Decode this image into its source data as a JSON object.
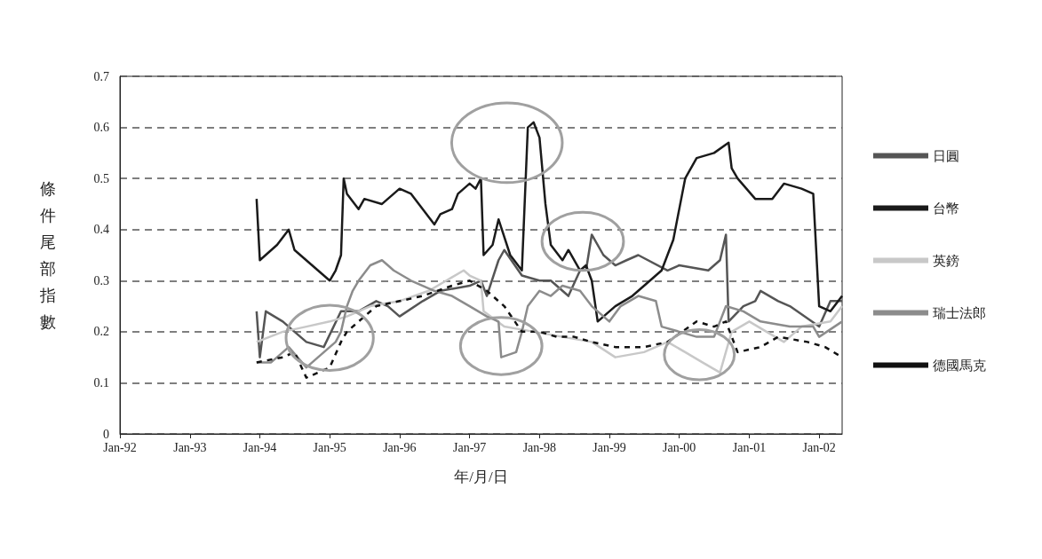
{
  "chart_data": {
    "type": "line",
    "xlabel": "年/月/日",
    "ylabel": "條件尾部指數",
    "xlim": [
      "1992-01",
      "2002-05"
    ],
    "xticks": [
      {
        "value": "1992-01",
        "label": "Jan-92"
      },
      {
        "value": "1993-01",
        "label": "Jan-93"
      },
      {
        "value": "1994-01",
        "label": "Jan-94"
      },
      {
        "value": "1995-01",
        "label": "Jan-95"
      },
      {
        "value": "1996-01",
        "label": "Jan-96"
      },
      {
        "value": "1997-01",
        "label": "Jan-97"
      },
      {
        "value": "1998-01",
        "label": "Jan-98"
      },
      {
        "value": "1999-01",
        "label": "Jan-99"
      },
      {
        "value": "2000-01",
        "label": "Jan-00"
      },
      {
        "value": "2001-01",
        "label": "Jan-01"
      },
      {
        "value": "2002-01",
        "label": "Jan-02"
      }
    ],
    "ylim": [
      0,
      0.7
    ],
    "yticks": [
      0,
      0.1,
      0.2,
      0.3,
      0.4,
      0.5,
      0.6,
      0.7
    ],
    "grid": "y",
    "legend": "right",
    "marker": "none",
    "series": [
      {
        "name": "日圓",
        "color": "#555555",
        "x": [
          "1993-12-15",
          "1994-01",
          "1994-02",
          "1994-05",
          "1994-07",
          "1994-09",
          "1994-12",
          "1995-03",
          "1995-06",
          "1995-09",
          "1995-11",
          "1996-01",
          "1996-05",
          "1996-08",
          "1997-01",
          "1997-03",
          "1997-04",
          "1997-06",
          "1997-07",
          "1997-10",
          "1998-01",
          "1998-03",
          "1998-06",
          "1998-08",
          "1998-09",
          "1998-10",
          "1998-12",
          "1999-02",
          "1999-04",
          "1999-06",
          "1999-11",
          "2000-01",
          "2000-06",
          "2000-08",
          "2000-09-01",
          "2000-09-15",
          "2000-12",
          "2001-02",
          "2001-03",
          "2001-06",
          "2001-08",
          "2002-01",
          "2002-03",
          "2002-05"
        ],
        "values": [
          0.24,
          0.15,
          0.24,
          0.22,
          0.2,
          0.18,
          0.17,
          0.24,
          0.24,
          0.26,
          0.25,
          0.23,
          0.26,
          0.28,
          0.29,
          0.3,
          0.27,
          0.34,
          0.36,
          0.31,
          0.3,
          0.3,
          0.27,
          0.32,
          0.32,
          0.39,
          0.35,
          0.33,
          0.34,
          0.35,
          0.32,
          0.33,
          0.32,
          0.34,
          0.39,
          0.22,
          0.25,
          0.26,
          0.28,
          0.26,
          0.25,
          0.21,
          0.26,
          0.26
        ]
      },
      {
        "name": "台幣",
        "color": "#1a1a1a",
        "x": [
          "1993-12-15",
          "1994-01",
          "1994-04",
          "1994-06",
          "1994-07",
          "1994-10",
          "1995-01",
          "1995-02",
          "1995-03-01",
          "1995-03-15",
          "1995-04",
          "1995-06",
          "1995-07",
          "1995-10",
          "1996-01",
          "1996-03",
          "1996-05",
          "1996-07",
          "1996-08",
          "1996-10",
          "1996-11",
          "1997-01",
          "1997-02",
          "1997-03-01",
          "1997-03-15",
          "1997-05",
          "1997-06",
          "1997-08",
          "1997-10",
          "1997-11",
          "1997-12",
          "1998-01",
          "1998-02",
          "1998-03",
          "1998-05",
          "1998-06",
          "1998-08",
          "1998-09",
          "1998-10",
          "1998-11",
          "1999-02",
          "1999-05",
          "1999-08",
          "1999-10",
          "1999-12",
          "2000-02",
          "2000-04",
          "2000-07",
          "2000-09-15",
          "2000-10",
          "2000-11",
          "2001-02",
          "2001-05",
          "2001-07",
          "2001-10",
          "2001-12",
          "2002-01",
          "2002-03",
          "2002-05"
        ],
        "values": [
          0.46,
          0.34,
          0.37,
          0.4,
          0.36,
          0.33,
          0.3,
          0.32,
          0.35,
          0.5,
          0.47,
          0.44,
          0.46,
          0.45,
          0.48,
          0.47,
          0.44,
          0.41,
          0.43,
          0.44,
          0.47,
          0.49,
          0.48,
          0.5,
          0.35,
          0.37,
          0.42,
          0.35,
          0.32,
          0.6,
          0.61,
          0.58,
          0.45,
          0.37,
          0.34,
          0.36,
          0.32,
          0.33,
          0.3,
          0.22,
          0.25,
          0.27,
          0.3,
          0.32,
          0.38,
          0.5,
          0.54,
          0.55,
          0.57,
          0.52,
          0.5,
          0.46,
          0.46,
          0.49,
          0.48,
          0.47,
          0.25,
          0.24,
          0.27
        ]
      },
      {
        "name": "英鎊",
        "color": "#c8c8c8",
        "x": [
          "1993-12-15",
          "1994-05",
          "1994-09",
          "1995-01",
          "1995-04",
          "1995-08",
          "1996-01",
          "1996-06",
          "1996-09",
          "1996-12",
          "1997-01",
          "1997-03-01",
          "1997-03-15",
          "1997-07",
          "1997-12",
          "1998-05",
          "1998-10",
          "1999-02",
          "1999-07",
          "1999-11",
          "2000-02",
          "2000-05",
          "2000-08",
          "2000-10",
          "2001-01",
          "2001-04",
          "2001-07",
          "2001-10",
          "2002-03",
          "2002-05"
        ],
        "values": [
          0.18,
          0.2,
          0.21,
          0.22,
          0.23,
          0.25,
          0.26,
          0.28,
          0.3,
          0.32,
          0.31,
          0.3,
          0.24,
          0.21,
          0.2,
          0.19,
          0.18,
          0.15,
          0.16,
          0.18,
          0.16,
          0.14,
          0.12,
          0.2,
          0.22,
          0.2,
          0.18,
          0.21,
          0.22,
          0.25
        ]
      },
      {
        "name": "瑞士法郎",
        "color": "#8c8c8c",
        "x": [
          "1993-12-15",
          "1994-03",
          "1994-06",
          "1994-09",
          "1994-11",
          "1995-02",
          "1995-03",
          "1995-04",
          "1995-05",
          "1995-06",
          "1995-08",
          "1995-10",
          "1995-11",
          "1995-12",
          "1996-03",
          "1996-07",
          "1996-10",
          "1997-01",
          "1997-04",
          "1997-06-01",
          "1997-06-15",
          "1997-09",
          "1997-10",
          "1997-11",
          "1998-01",
          "1998-03",
          "1998-05",
          "1998-08",
          "1998-10",
          "1999-01",
          "1999-03",
          "1999-06",
          "1999-09",
          "1999-10",
          "2000-01",
          "2000-04",
          "2000-07",
          "2000-09",
          "2000-12",
          "2001-03",
          "2001-08",
          "2001-12",
          "2002-01",
          "2002-05"
        ],
        "values": [
          0.14,
          0.14,
          0.17,
          0.13,
          0.15,
          0.18,
          0.2,
          0.25,
          0.28,
          0.3,
          0.33,
          0.34,
          0.33,
          0.32,
          0.3,
          0.28,
          0.27,
          0.25,
          0.23,
          0.22,
          0.15,
          0.16,
          0.2,
          0.25,
          0.28,
          0.27,
          0.29,
          0.28,
          0.25,
          0.22,
          0.25,
          0.27,
          0.26,
          0.21,
          0.2,
          0.19,
          0.19,
          0.25,
          0.24,
          0.22,
          0.21,
          0.21,
          0.19,
          0.22
        ]
      },
      {
        "name": "德國馬克",
        "color": "#111111",
        "line_style": "dashed",
        "x": [
          "1993-12-15",
          "1994-05",
          "1994-07",
          "1994-09",
          "1994-11",
          "1995-01",
          "1995-03",
          "1995-04",
          "1995-06",
          "1995-09",
          "1996-01",
          "1996-05",
          "1996-10",
          "1997-01",
          "1997-04",
          "1997-07",
          "1997-10",
          "1998-01",
          "1998-04",
          "1998-07",
          "1998-10",
          "1999-02",
          "1999-07",
          "1999-11",
          "2000-04",
          "2000-07",
          "2000-09",
          "2000-11",
          "2001-03",
          "2001-06",
          "2001-11",
          "2002-02",
          "2002-05"
        ],
        "values": [
          0.14,
          0.15,
          0.16,
          0.11,
          0.12,
          0.13,
          0.18,
          0.2,
          0.22,
          0.25,
          0.26,
          0.27,
          0.29,
          0.3,
          0.28,
          0.25,
          0.2,
          0.2,
          0.19,
          0.19,
          0.18,
          0.17,
          0.17,
          0.18,
          0.22,
          0.21,
          0.22,
          0.16,
          0.17,
          0.19,
          0.18,
          0.17,
          0.15
        ]
      }
    ]
  }
}
